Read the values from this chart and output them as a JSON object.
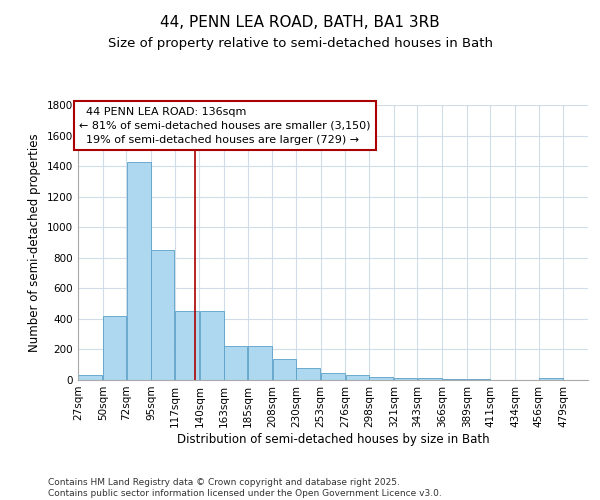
{
  "title": "44, PENN LEA ROAD, BATH, BA1 3RB",
  "subtitle": "Size of property relative to semi-detached houses in Bath",
  "xlabel": "Distribution of semi-detached houses by size in Bath",
  "ylabel": "Number of semi-detached properties",
  "property_address": "44 PENN LEA ROAD: 136sqm",
  "pct_smaller": 81,
  "pct_larger": 19,
  "count_smaller": 3150,
  "count_larger": 729,
  "property_size": 136,
  "vline_x": 136,
  "bar_left_edges": [
    27,
    50,
    72,
    95,
    117,
    140,
    163,
    185,
    208,
    230,
    253,
    276,
    298,
    321,
    343,
    366,
    389,
    411,
    434,
    456
  ],
  "bar_widths": [
    23,
    22,
    23,
    22,
    23,
    23,
    22,
    23,
    22,
    23,
    23,
    22,
    23,
    22,
    23,
    23,
    22,
    23,
    22,
    23
  ],
  "bar_heights": [
    30,
    420,
    1430,
    850,
    450,
    450,
    220,
    220,
    140,
    80,
    45,
    30,
    20,
    15,
    10,
    8,
    5,
    3,
    2,
    15
  ],
  "bar_color": "#add8f0",
  "bar_edge_color": "#5aa0c8",
  "vline_color": "#aa0000",
  "background_color": "#ffffff",
  "grid_color": "#d0dce8",
  "ylim": [
    0,
    1800
  ],
  "yticks": [
    0,
    200,
    400,
    600,
    800,
    1000,
    1200,
    1400,
    1600,
    1800
  ],
  "xtick_labels": [
    "27sqm",
    "50sqm",
    "72sqm",
    "95sqm",
    "117sqm",
    "140sqm",
    "163sqm",
    "185sqm",
    "208sqm",
    "230sqm",
    "253sqm",
    "276sqm",
    "298sqm",
    "321sqm",
    "343sqm",
    "366sqm",
    "389sqm",
    "411sqm",
    "434sqm",
    "456sqm",
    "479sqm"
  ],
  "footer": "Contains HM Land Registry data © Crown copyright and database right 2025.\nContains public sector information licensed under the Open Government Licence v3.0.",
  "title_fontsize": 11,
  "subtitle_fontsize": 9.5,
  "axis_label_fontsize": 8.5,
  "tick_fontsize": 7.5,
  "footer_fontsize": 6.5,
  "annot_fontsize": 8
}
